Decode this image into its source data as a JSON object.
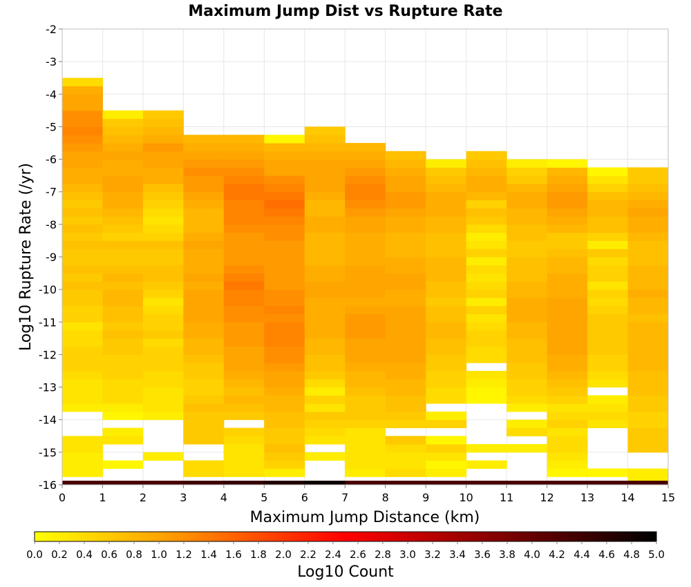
{
  "chart_data": {
    "type": "heatmap",
    "title": "Maximum Jump Dist vs Rupture Rate",
    "xlabel": "Maximum Jump Distance (km)",
    "ylabel": "Log10 Rupture Rate (/yr)",
    "xlim": [
      0,
      15
    ],
    "ylim": [
      -16,
      -2
    ],
    "x_ticks": [
      "0",
      "1",
      "2",
      "3",
      "4",
      "5",
      "6",
      "7",
      "8",
      "9",
      "10",
      "11",
      "12",
      "13",
      "14",
      "15"
    ],
    "y_ticks": [
      "-2",
      "-3",
      "-4",
      "-5",
      "-6",
      "-7",
      "-8",
      "-9",
      "-10",
      "-11",
      "-12",
      "-13",
      "-14",
      "-15",
      "-16"
    ],
    "bin_width_x": 1,
    "bin_height_y": 0.25,
    "y_bin_start": -15.875,
    "colorbar": {
      "label": "Log10 Count",
      "min": 0.0,
      "max": 5.0,
      "ticks": [
        "0.0",
        "0.2",
        "0.4",
        "0.6",
        "0.8",
        "1.0",
        "1.2",
        "1.4",
        "1.6",
        "1.8",
        "2.0",
        "2.2",
        "2.4",
        "2.6",
        "2.8",
        "3.0",
        "3.2",
        "3.4",
        "3.6",
        "3.8",
        "4.0",
        "4.2",
        "4.4",
        "4.6",
        "4.8",
        "5.0"
      ],
      "colors": [
        "#ffff00",
        "#ffa500",
        "#ff0000",
        "#000000"
      ]
    },
    "bottom_row": [
      4.3,
      4.3,
      4.3,
      4.4,
      4.5,
      4.7,
      4.9,
      4.3,
      4.3,
      4.3,
      4.3,
      4.3,
      4.3,
      4.3,
      4.3
    ],
    "columns": [
      {
        "x": 0,
        "values": [
          null,
          0.2,
          0.2,
          0.2,
          0.3,
          0.3,
          null,
          null,
          null,
          0.2,
          0.3,
          0.3,
          0.3,
          0.4,
          0.5,
          0.5,
          0.5,
          0.4,
          0.4,
          0.3,
          0.5,
          0.5,
          0.6,
          0.6,
          0.7,
          0.6,
          0.7,
          0.6,
          0.6,
          0.7,
          0.6,
          0.7,
          0.6,
          0.7,
          0.6,
          0.7,
          0.8,
          0.9,
          0.9,
          1.0,
          1.0,
          1.1,
          1.2,
          1.3,
          1.2,
          1.2,
          1.0,
          1.0,
          0.9,
          0.4
        ]
      },
      {
        "x": 1,
        "values": [
          null,
          null,
          0.1,
          null,
          null,
          0.3,
          0.2,
          null,
          0.1,
          0.2,
          0.4,
          0.4,
          0.4,
          0.5,
          0.5,
          0.5,
          0.6,
          0.6,
          0.7,
          0.6,
          0.7,
          0.7,
          0.8,
          0.8,
          0.7,
          0.8,
          0.7,
          0.6,
          0.6,
          0.7,
          0.5,
          0.6,
          0.7,
          0.8,
          0.9,
          0.9,
          1.0,
          1.0,
          0.9,
          0.9,
          1.0,
          0.9,
          0.8,
          0.7,
          0.6,
          0.2
        ]
      },
      {
        "x": 2,
        "values": [
          null,
          null,
          null,
          0.2,
          null,
          null,
          null,
          null,
          0.2,
          0.3,
          0.3,
          0.3,
          0.4,
          0.4,
          0.5,
          0.5,
          0.5,
          0.4,
          0.6,
          0.5,
          0.5,
          0.4,
          0.3,
          0.5,
          0.6,
          0.7,
          0.7,
          0.6,
          0.6,
          0.7,
          0.5,
          0.4,
          0.3,
          0.4,
          0.5,
          0.6,
          0.7,
          0.9,
          0.9,
          1.0,
          1.0,
          1.1,
          0.9,
          0.8,
          0.7,
          0.6
        ]
      },
      {
        "x": 3,
        "values": [
          null,
          0.4,
          0.4,
          null,
          null,
          0.6,
          0.6,
          0.6,
          0.6,
          0.7,
          0.6,
          0.5,
          0.5,
          0.6,
          0.6,
          0.7,
          0.8,
          0.8,
          0.9,
          0.9,
          1.0,
          1.0,
          1.0,
          1.0,
          0.9,
          1.0,
          0.9,
          0.9,
          0.9,
          1.0,
          0.9,
          0.8,
          0.8,
          0.8,
          0.9,
          1.0,
          1.1,
          1.1,
          1.2,
          1.1,
          1.0,
          0.9,
          0.8
        ]
      },
      {
        "x": 4,
        "values": [
          null,
          0.3,
          0.3,
          0.3,
          0.3,
          0.4,
          0.5,
          null,
          0.6,
          0.7,
          0.8,
          0.7,
          0.8,
          0.9,
          1.0,
          1.0,
          1.0,
          1.1,
          1.1,
          1.1,
          1.2,
          1.2,
          1.3,
          1.3,
          1.4,
          1.3,
          1.2,
          1.1,
          1.1,
          1.1,
          1.1,
          1.2,
          1.3,
          1.3,
          1.3,
          1.4,
          1.4,
          1.3,
          1.2,
          1.1,
          1.0,
          0.9,
          0.8
        ]
      },
      {
        "x": 5,
        "values": [
          null,
          0.2,
          0.5,
          0.6,
          0.7,
          0.6,
          0.6,
          0.7,
          0.7,
          0.8,
          0.8,
          0.9,
          1.0,
          1.0,
          1.1,
          1.2,
          1.2,
          1.3,
          1.3,
          1.3,
          1.2,
          1.3,
          1.2,
          1.2,
          1.1,
          1.1,
          1.1,
          1.1,
          1.1,
          1.1,
          1.2,
          1.2,
          1.3,
          1.4,
          1.5,
          1.4,
          1.3,
          1.2,
          1.0,
          1.0,
          0.9,
          0.8,
          0.1
        ]
      },
      {
        "x": 6,
        "values": [
          null,
          null,
          null,
          0.2,
          null,
          0.3,
          0.4,
          0.5,
          0.6,
          0.3,
          0.5,
          0.2,
          0.4,
          0.6,
          0.7,
          0.7,
          0.8,
          0.8,
          0.9,
          0.9,
          0.9,
          0.9,
          0.9,
          1.0,
          1.0,
          0.9,
          0.9,
          0.8,
          0.8,
          0.8,
          0.8,
          0.9,
          0.9,
          0.8,
          0.8,
          0.9,
          1.0,
          1.0,
          1.0,
          1.0,
          0.9,
          0.8,
          0.7,
          0.6
        ]
      },
      {
        "x": 7,
        "values": [
          null,
          0.2,
          0.3,
          0.3,
          0.3,
          0.3,
          0.3,
          0.5,
          0.6,
          0.6,
          0.6,
          0.7,
          0.8,
          0.8,
          0.9,
          1.0,
          1.0,
          1.0,
          1.1,
          1.1,
          1.1,
          1.0,
          0.9,
          1.0,
          1.0,
          1.0,
          1.0,
          0.9,
          0.9,
          0.9,
          0.9,
          1.0,
          1.0,
          1.1,
          1.2,
          1.3,
          1.3,
          1.2,
          1.1,
          1.0,
          0.9,
          0.8
        ]
      },
      {
        "x": 8,
        "values": [
          null,
          0.4,
          0.3,
          0.3,
          0.4,
          0.6,
          null,
          0.5,
          0.6,
          0.7,
          0.7,
          0.8,
          0.8,
          0.9,
          0.9,
          1.0,
          1.0,
          1.0,
          1.0,
          1.0,
          1.0,
          1.0,
          0.9,
          0.9,
          1.0,
          1.0,
          0.9,
          0.9,
          0.8,
          0.8,
          0.8,
          0.9,
          0.9,
          1.0,
          1.1,
          1.1,
          1.0,
          1.0,
          0.9,
          0.8,
          0.7
        ]
      },
      {
        "x": 9,
        "values": [
          null,
          0.2,
          0.1,
          0.3,
          0.5,
          0.1,
          null,
          0.5,
          0.2,
          null,
          0.4,
          0.4,
          0.5,
          0.5,
          0.6,
          0.6,
          0.7,
          0.7,
          0.8,
          0.8,
          0.7,
          0.7,
          0.6,
          0.7,
          0.7,
          0.8,
          0.8,
          0.8,
          0.7,
          0.7,
          0.7,
          0.8,
          0.8,
          0.9,
          0.9,
          0.9,
          0.8,
          0.7,
          0.6,
          0.2
        ]
      },
      {
        "x": 10,
        "values": [
          null,
          null,
          0.2,
          null,
          0.2,
          null,
          null,
          null,
          null,
          null,
          0.1,
          0.1,
          0.2,
          0.3,
          null,
          0.4,
          0.4,
          0.5,
          0.5,
          0.4,
          0.3,
          0.5,
          0.2,
          0.5,
          0.4,
          0.3,
          0.4,
          0.2,
          0.5,
          0.3,
          0.2,
          0.4,
          0.6,
          0.7,
          0.5,
          0.8,
          0.9,
          0.9,
          0.8,
          0.7,
          0.6
        ]
      },
      {
        "x": 11,
        "values": [
          null,
          null,
          null,
          null,
          0.2,
          null,
          0.4,
          0.2,
          null,
          0.2,
          0.4,
          0.5,
          0.5,
          0.6,
          0.6,
          0.7,
          0.7,
          0.7,
          0.8,
          0.8,
          0.9,
          0.9,
          0.9,
          0.8,
          0.8,
          0.7,
          0.7,
          0.7,
          0.6,
          0.6,
          0.7,
          0.7,
          0.8,
          0.8,
          0.9,
          0.9,
          0.8,
          0.6,
          0.5,
          0.2
        ]
      },
      {
        "x": 12,
        "values": [
          null,
          0.1,
          0.2,
          0.3,
          0.4,
          0.4,
          0.3,
          0.5,
          0.4,
          0.3,
          0.5,
          0.6,
          0.7,
          0.8,
          0.9,
          0.9,
          1.0,
          1.0,
          1.0,
          1.0,
          1.0,
          1.0,
          1.0,
          0.9,
          0.9,
          0.9,
          0.8,
          0.8,
          0.7,
          0.6,
          0.6,
          0.8,
          0.9,
          1.0,
          1.1,
          1.1,
          1.0,
          0.9,
          0.8,
          0.1
        ]
      },
      {
        "x": 13,
        "values": [
          null,
          0.1,
          null,
          null,
          null,
          null,
          null,
          0.3,
          0.4,
          0.3,
          0.2,
          null,
          0.3,
          0.4,
          0.5,
          0.5,
          0.6,
          0.6,
          0.6,
          0.6,
          0.6,
          0.5,
          0.4,
          0.5,
          0.3,
          0.5,
          0.5,
          0.4,
          0.6,
          0.2,
          0.5,
          0.7,
          0.7,
          0.8,
          0.8,
          0.7,
          0.5,
          0.3,
          0.1
        ]
      },
      {
        "x": 14,
        "values": [
          0.2,
          0.2,
          null,
          null,
          0.6,
          0.6,
          0.6,
          0.5,
          0.5,
          0.6,
          0.6,
          0.7,
          0.7,
          0.7,
          0.8,
          0.8,
          0.8,
          0.8,
          0.8,
          0.8,
          0.7,
          0.8,
          0.8,
          0.9,
          0.8,
          0.8,
          0.8,
          0.7,
          0.7,
          0.7,
          0.8,
          0.9,
          0.9,
          1.0,
          0.9,
          0.8,
          0.7,
          0.6,
          0.6
        ]
      }
    ]
  }
}
